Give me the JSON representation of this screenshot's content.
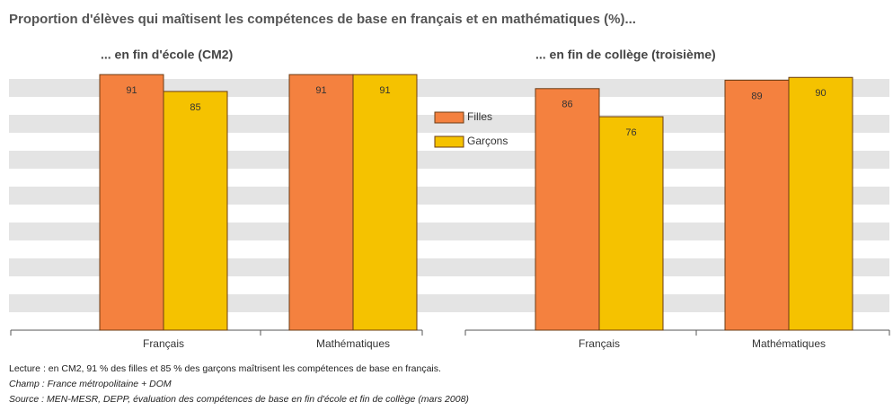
{
  "title": "Proportion d'élèves qui maîtisent les compétences de base en français et en mathématiques (%)...",
  "notes": {
    "lecture": "Lecture : en CM2,  91 % des filles et 85 % des garçons maîtrisent les compétences de base en français.",
    "champ": "Champ : France métropolitaine + DOM",
    "source": "Source : MEN-MESR, DEPP, évaluation des compétences de base en fin d'école et fin de collège (mars 2008)"
  },
  "chart_data": [
    {
      "type": "bar",
      "title": "... en fin d'école (CM2)",
      "categories": [
        "Français",
        "Mathématiques"
      ],
      "series": [
        {
          "name": "Filles",
          "color": "#f4813f",
          "values": [
            91,
            91
          ]
        },
        {
          "name": "Garçons",
          "color": "#f5c200",
          "values": [
            85,
            91
          ]
        }
      ],
      "ylim": [
        0,
        92
      ]
    },
    {
      "type": "bar",
      "title": "... en fin de collège (troisième)",
      "categories": [
        "Français",
        "Mathématiques"
      ],
      "series": [
        {
          "color": "#f4813f",
          "values": [
            86,
            89
          ]
        },
        {
          "color": "#f5c200",
          "values": [
            76,
            90
          ]
        }
      ],
      "ylim": [
        0,
        92
      ]
    }
  ]
}
